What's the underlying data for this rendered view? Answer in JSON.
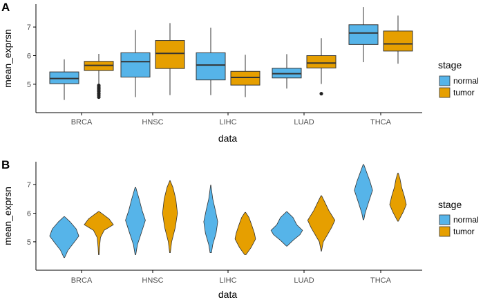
{
  "chart_data": [
    {
      "panel": "A",
      "type": "box",
      "xlabel": "data",
      "ylabel": "mean_exprsn",
      "categories": [
        "BRCA",
        "HNSC",
        "LIHC",
        "LUAD",
        "THCA"
      ],
      "yticks": [
        "5",
        "6",
        "7"
      ],
      "ylim": [
        4.2,
        7.8
      ],
      "legend": {
        "title": "stage",
        "position": "right",
        "entries": [
          "normal",
          "tumor"
        ]
      },
      "colors": {
        "normal": "#56B4E9",
        "tumor": "#E69F00"
      },
      "series": [
        {
          "name": "normal",
          "boxes": [
            {
              "min": 4.45,
              "q1": 5.02,
              "median": 5.2,
              "q3": 5.43,
              "max": 5.87,
              "outliers": []
            },
            {
              "min": 4.55,
              "q1": 5.25,
              "median": 5.79,
              "q3": 6.1,
              "max": 6.9,
              "outliers": []
            },
            {
              "min": 4.62,
              "q1": 5.15,
              "median": 5.67,
              "q3": 6.1,
              "max": 6.98,
              "outliers": []
            },
            {
              "min": 4.85,
              "q1": 5.22,
              "median": 5.37,
              "q3": 5.56,
              "max": 6.05,
              "outliers": []
            },
            {
              "min": 5.77,
              "q1": 6.39,
              "median": 6.79,
              "q3": 7.08,
              "max": 7.7,
              "outliers": []
            }
          ]
        },
        {
          "name": "tumor",
          "boxes": [
            {
              "min": 5.0,
              "q1": 5.48,
              "median": 5.66,
              "q3": 5.8,
              "max": 6.06,
              "outliers": [
                4.55,
                4.62,
                4.68,
                4.75,
                4.8,
                4.85,
                4.9,
                4.96
              ]
            },
            {
              "min": 4.62,
              "q1": 5.55,
              "median": 6.08,
              "q3": 6.53,
              "max": 7.14,
              "outliers": []
            },
            {
              "min": 4.55,
              "q1": 4.97,
              "median": 5.24,
              "q3": 5.45,
              "max": 6.03,
              "outliers": []
            },
            {
              "min": 5.01,
              "q1": 5.57,
              "median": 5.74,
              "q3": 6.0,
              "max": 6.61,
              "outliers": [
                4.67
              ]
            },
            {
              "min": 5.72,
              "q1": 6.16,
              "median": 6.41,
              "q3": 6.86,
              "max": 7.4,
              "outliers": []
            }
          ]
        }
      ]
    },
    {
      "panel": "B",
      "type": "violin",
      "xlabel": "data",
      "ylabel": "mean_exprsn",
      "categories": [
        "BRCA",
        "HNSC",
        "LIHC",
        "LUAD",
        "THCA"
      ],
      "yticks": [
        "5",
        "6",
        "7"
      ],
      "ylim": [
        4.2,
        7.8
      ],
      "legend": {
        "title": "stage",
        "position": "right",
        "entries": [
          "normal",
          "tumor"
        ]
      },
      "colors": {
        "normal": "#56B4E9",
        "tumor": "#E69F00"
      },
      "series": [
        {
          "name": "normal",
          "violins": [
            {
              "profile": [
                [
                  4.45,
                  0.02
                ],
                [
                  4.7,
                  0.22
                ],
                [
                  5.0,
                  0.62
                ],
                [
                  5.2,
                  0.88
                ],
                [
                  5.45,
                  0.72
                ],
                [
                  5.7,
                  0.35
                ],
                [
                  5.88,
                  0.02
                ]
              ]
            },
            {
              "profile": [
                [
                  4.55,
                  0.02
                ],
                [
                  4.9,
                  0.12
                ],
                [
                  5.3,
                  0.35
                ],
                [
                  5.75,
                  0.6
                ],
                [
                  6.1,
                  0.4
                ],
                [
                  6.5,
                  0.22
                ],
                [
                  6.9,
                  0.02
                ]
              ]
            },
            {
              "profile": [
                [
                  4.62,
                  0.04
                ],
                [
                  4.9,
                  0.12
                ],
                [
                  5.3,
                  0.32
                ],
                [
                  5.7,
                  0.42
                ],
                [
                  6.1,
                  0.28
                ],
                [
                  6.5,
                  0.12
                ],
                [
                  6.98,
                  0.01
                ]
              ]
            },
            {
              "profile": [
                [
                  4.85,
                  0.02
                ],
                [
                  5.05,
                  0.38
                ],
                [
                  5.25,
                  0.8
                ],
                [
                  5.4,
                  0.95
                ],
                [
                  5.6,
                  0.6
                ],
                [
                  5.85,
                  0.38
                ],
                [
                  6.05,
                  0.02
                ]
              ]
            },
            {
              "profile": [
                [
                  5.77,
                  0.02
                ],
                [
                  6.0,
                  0.1
                ],
                [
                  6.4,
                  0.32
                ],
                [
                  6.8,
                  0.55
                ],
                [
                  7.1,
                  0.4
                ],
                [
                  7.45,
                  0.18
                ],
                [
                  7.7,
                  0.02
                ]
              ]
            }
          ]
        },
        {
          "name": "tumor",
          "violins": [
            {
              "profile": [
                [
                  4.55,
                  0.02
                ],
                [
                  4.8,
                  0.04
                ],
                [
                  5.15,
                  0.1
                ],
                [
                  5.4,
                  0.32
                ],
                [
                  5.6,
                  0.88
                ],
                [
                  5.8,
                  0.62
                ],
                [
                  5.95,
                  0.28
                ],
                [
                  6.06,
                  0.02
                ]
              ]
            },
            {
              "profile": [
                [
                  4.62,
                  0.02
                ],
                [
                  5.0,
                  0.1
                ],
                [
                  5.5,
                  0.32
                ],
                [
                  6.0,
                  0.45
                ],
                [
                  6.5,
                  0.35
                ],
                [
                  6.9,
                  0.18
                ],
                [
                  7.14,
                  0.01
                ]
              ]
            },
            {
              "profile": [
                [
                  4.55,
                  0.04
                ],
                [
                  4.8,
                  0.35
                ],
                [
                  5.1,
                  0.62
                ],
                [
                  5.3,
                  0.55
                ],
                [
                  5.6,
                  0.38
                ],
                [
                  5.85,
                  0.22
                ],
                [
                  6.03,
                  0.02
                ]
              ]
            },
            {
              "profile": [
                [
                  4.67,
                  0.01
                ],
                [
                  5.0,
                  0.12
                ],
                [
                  5.5,
                  0.62
                ],
                [
                  5.75,
                  0.82
                ],
                [
                  6.1,
                  0.45
                ],
                [
                  6.4,
                  0.2
                ],
                [
                  6.61,
                  0.02
                ]
              ]
            },
            {
              "profile": [
                [
                  5.72,
                  0.02
                ],
                [
                  6.05,
                  0.32
                ],
                [
                  6.3,
                  0.5
                ],
                [
                  6.6,
                  0.38
                ],
                [
                  6.9,
                  0.22
                ],
                [
                  7.2,
                  0.12
                ],
                [
                  7.4,
                  0.02
                ]
              ]
            }
          ]
        }
      ]
    }
  ]
}
